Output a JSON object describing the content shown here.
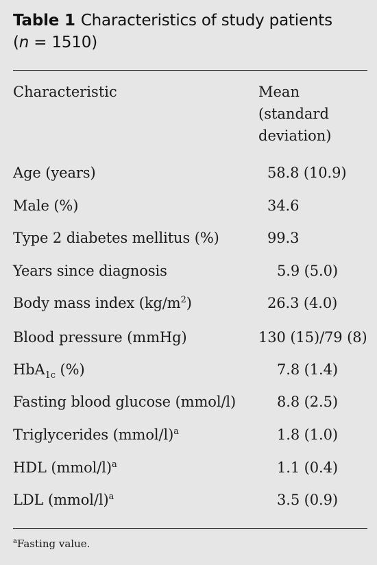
{
  "caption": {
    "label": "Table 1",
    "title": "Characteristics of study patients",
    "n_open": "(",
    "n_var": "n",
    "n_value": " = 1510)"
  },
  "header": {
    "characteristic": "Characteristic",
    "value_lines": [
      "Mean",
      "(standard",
      "deviation)"
    ]
  },
  "rows": [
    {
      "label": "Age (years)",
      "value": "58.8 (10.9)"
    },
    {
      "label": "Male (%)",
      "value": "34.6"
    },
    {
      "label": "Type 2 diabetes mellitus (%)",
      "value": "99.3"
    },
    {
      "label": "Years since diagnosis",
      "value": "5.9 (5.0)"
    },
    {
      "label_pre": "Body mass index (kg/m",
      "label_sup": "2",
      "label_post": ")",
      "value": "26.3 (4.0)"
    },
    {
      "label": "Blood pressure (mmHg)",
      "value": "130 (15)/79 (8)"
    },
    {
      "label_pre": "HbA",
      "label_sub": "1c",
      "label_post": " (%)",
      "value": "7.8 (1.4)"
    },
    {
      "label": "Fasting blood glucose (mmol/l)",
      "value": "8.8 (2.5)"
    },
    {
      "label": "Triglycerides (mmol/l)",
      "note": "a",
      "value": "1.8 (1.0)"
    },
    {
      "label": "HDL (mmol/l)",
      "note": "a",
      "value": "1.1 (0.4)"
    },
    {
      "label": "LDL (mmol/l)",
      "note": "a",
      "value": "3.5 (0.9)"
    }
  ],
  "footnote": {
    "marker": "a",
    "text": "Fasting value."
  }
}
